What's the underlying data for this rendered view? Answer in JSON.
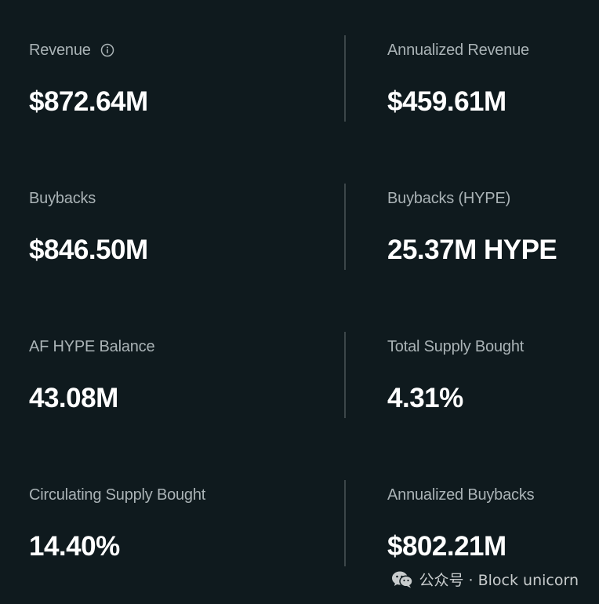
{
  "metrics": [
    {
      "label": "Revenue",
      "value": "$872.64M",
      "has_info": true
    },
    {
      "label": "Annualized Revenue",
      "value": "$459.61M"
    },
    {
      "label": "Buybacks",
      "value": "$846.50M"
    },
    {
      "label": "Buybacks (HYPE)",
      "value": "25.37M HYPE"
    },
    {
      "label": "AF HYPE Balance",
      "value": "43.08M"
    },
    {
      "label": "Total Supply Bought",
      "value": "4.31%"
    },
    {
      "label": "Circulating Supply Bought",
      "value": "14.40%"
    },
    {
      "label": "Annualized Buybacks",
      "value": "$802.21M"
    }
  ],
  "icons": {
    "info": "info-icon",
    "watermark": "wechat-icon"
  },
  "watermark": {
    "text": "公众号 · Block unicorn"
  },
  "colors": {
    "background": "#0f1a1e",
    "label": "#aab3b6",
    "value": "#ffffff",
    "divider": "#3c4649"
  }
}
